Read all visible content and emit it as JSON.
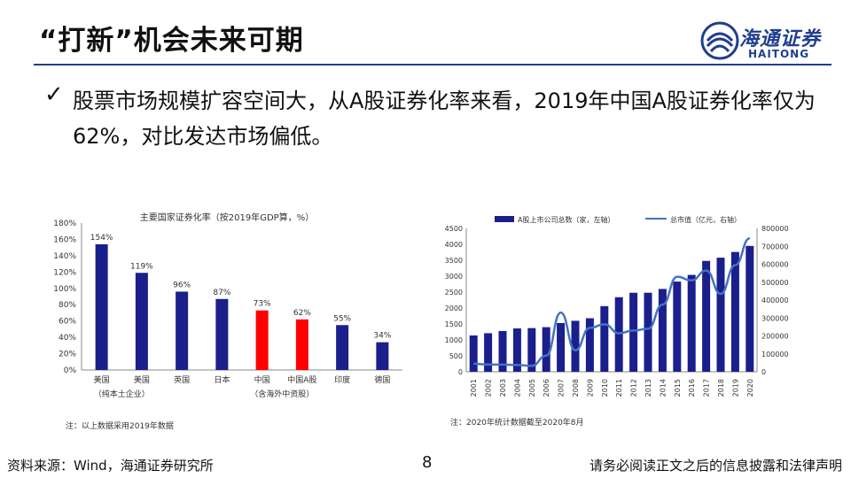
{
  "slide": {
    "title": "“打新”机会未来可期",
    "logo_cn": "海通证券",
    "logo_en": "HAITONG",
    "bullet_check": "✓",
    "bullet_text": "股票市场规模扩容空间大，从A股证券化率来看，2019年中国A股证券化率仅为62%，对比发达市场偏低。",
    "left_note": "注：以上数据采用2019年数据",
    "right_note": "注：2020年统计数据截至2020年8月",
    "footer_source": "资料来源：Wind，海通证券研究所",
    "page_number": "8",
    "footer_disclaimer": "请务必阅读正文之后的信息披露和法律声明"
  },
  "chart_data": [
    {
      "type": "bar",
      "title": "主要国家证券化率（按2019年GDP算，%）",
      "categories": [
        "美国",
        "美国",
        "英国",
        "日本",
        "中国",
        "中国A股",
        "印度",
        "德国"
      ],
      "category_sublabels": [
        "（纯本土企业）",
        "（含海外中资股）"
      ],
      "values": [
        154,
        119,
        96,
        87,
        73,
        62,
        55,
        34
      ],
      "data_labels": [
        "154%",
        "119%",
        "96%",
        "87%",
        "73%",
        "62%",
        "55%",
        "34%"
      ],
      "bar_colors": [
        "#1a1f8c",
        "#1a1f8c",
        "#1a1f8c",
        "#1a1f8c",
        "#ff0000",
        "#ff0000",
        "#1a1f8c",
        "#1a1f8c"
      ],
      "y_ticks": [
        "0%",
        "20%",
        "40%",
        "60%",
        "80%",
        "100%",
        "120%",
        "140%",
        "160%",
        "180%"
      ],
      "ylim": [
        0,
        180
      ]
    },
    {
      "type": "bar",
      "categories": [
        "2001",
        "2002",
        "2003",
        "2004",
        "2005",
        "2006",
        "2007",
        "2008",
        "2009",
        "2010",
        "2011",
        "2012",
        "2013",
        "2014",
        "2015",
        "2016",
        "2017",
        "2018",
        "2019",
        "2020"
      ],
      "series": [
        {
          "name": "A股上市公司总数（家，左轴）",
          "type": "bar",
          "color": "#1a1f8c",
          "values": [
            1140,
            1210,
            1280,
            1360,
            1370,
            1400,
            1530,
            1600,
            1680,
            2060,
            2340,
            2480,
            2480,
            2600,
            2830,
            3040,
            3480,
            3580,
            3760,
            3950
          ]
        },
        {
          "name": "总市值（亿元，右轴）",
          "type": "line",
          "color": "#4472c4",
          "values": [
            45000,
            40000,
            40000,
            38000,
            33000,
            90000,
            330000,
            120000,
            245000,
            265000,
            215000,
            230000,
            240000,
            375000,
            530000,
            510000,
            565000,
            435000,
            595000,
            745000
          ]
        }
      ],
      "y_left_ticks": [
        "0",
        "500",
        "1000",
        "1500",
        "2000",
        "2500",
        "3000",
        "3500",
        "4000",
        "4500"
      ],
      "y_right_ticks": [
        "0",
        "100000",
        "200000",
        "300000",
        "400000",
        "500000",
        "600000",
        "700000",
        "800000"
      ],
      "ylim_left": [
        0,
        4500
      ],
      "ylim_right": [
        0,
        800000
      ],
      "legend": "top"
    }
  ]
}
